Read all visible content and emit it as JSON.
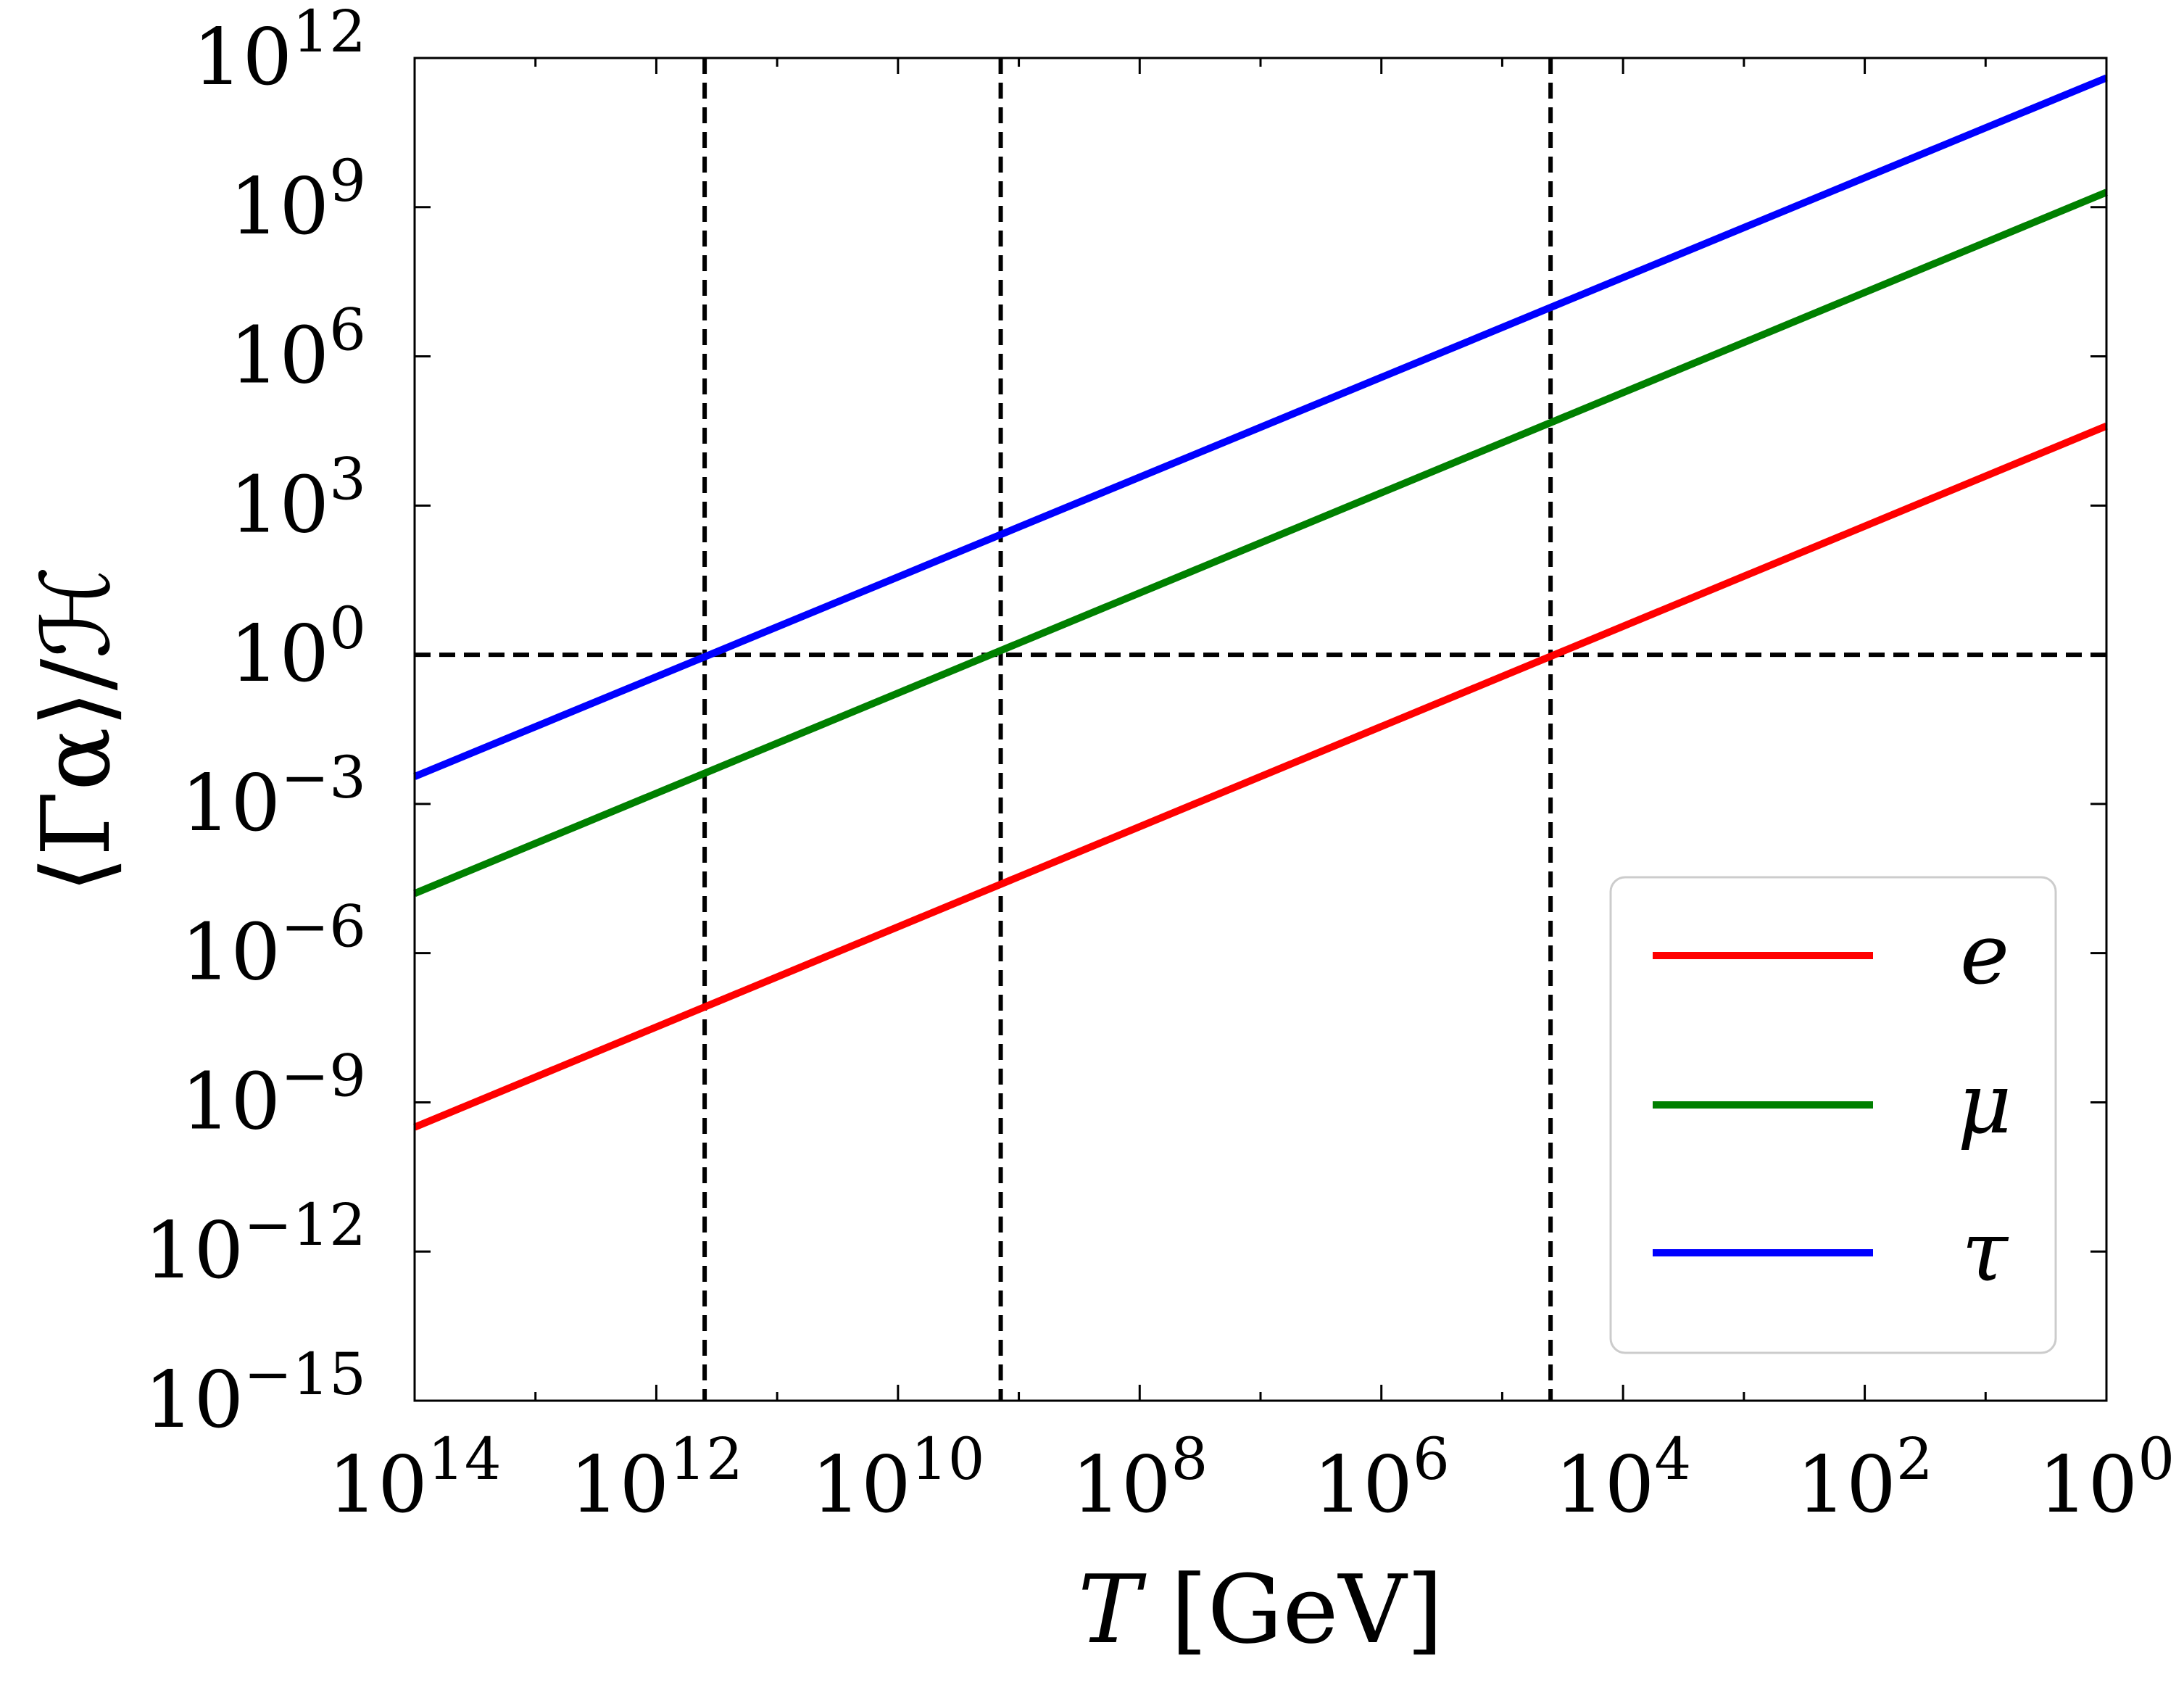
{
  "chart_data": {
    "type": "line",
    "title": "",
    "xlabel": "T [GeV]",
    "xlabel_parts": {
      "var": "T",
      "unit": "[GeV]"
    },
    "ylabel": "⟨Γα⟩/ℋ",
    "xscale": "log",
    "yscale": "log",
    "x_inverted": true,
    "xlim_log10": [
      14,
      0
    ],
    "ylim_log10": [
      -15,
      12
    ],
    "x_ticks": [
      {
        "exp": 14,
        "base": "10",
        "sup": "14"
      },
      {
        "exp": 12,
        "base": "10",
        "sup": "12"
      },
      {
        "exp": 10,
        "base": "10",
        "sup": "10"
      },
      {
        "exp": 8,
        "base": "10",
        "sup": "8"
      },
      {
        "exp": 6,
        "base": "10",
        "sup": "6"
      },
      {
        "exp": 4,
        "base": "10",
        "sup": "4"
      },
      {
        "exp": 2,
        "base": "10",
        "sup": "2"
      },
      {
        "exp": 0,
        "base": "10",
        "sup": "0"
      }
    ],
    "y_ticks": [
      {
        "exp": 12,
        "base": "10",
        "sup": "12"
      },
      {
        "exp": 9,
        "base": "10",
        "sup": "9"
      },
      {
        "exp": 6,
        "base": "10",
        "sup": "6"
      },
      {
        "exp": 3,
        "base": "10",
        "sup": "3"
      },
      {
        "exp": 0,
        "base": "10",
        "sup": "0"
      },
      {
        "exp": -3,
        "base": "10",
        "sup": "−3"
      },
      {
        "exp": -6,
        "base": "10",
        "sup": "−6"
      },
      {
        "exp": -9,
        "base": "10",
        "sup": "−9"
      },
      {
        "exp": -12,
        "base": "10",
        "sup": "−12"
      },
      {
        "exp": -15,
        "base": "10",
        "sup": "−15"
      }
    ],
    "series": [
      {
        "name": "e",
        "color": "#ff0000",
        "x_log10": [
          14,
          0
        ],
        "y_log10": [
          -9.5,
          4.6
        ]
      },
      {
        "name": "μ",
        "color": "#008000",
        "x_log10": [
          14,
          0
        ],
        "y_log10": [
          -4.8,
          9.3
        ]
      },
      {
        "name": "τ",
        "color": "#0000ff",
        "x_log10": [
          14,
          0
        ],
        "y_log10": [
          -2.45,
          11.6
        ]
      }
    ],
    "reference_lines": {
      "horizontal_log10": [
        0
      ],
      "vertical_log10": [
        11.6,
        9.15,
        4.6
      ],
      "style": "dashed",
      "color": "#000000"
    },
    "legend": {
      "position": "lower-right",
      "entries": [
        "e",
        "μ",
        "τ"
      ]
    }
  }
}
